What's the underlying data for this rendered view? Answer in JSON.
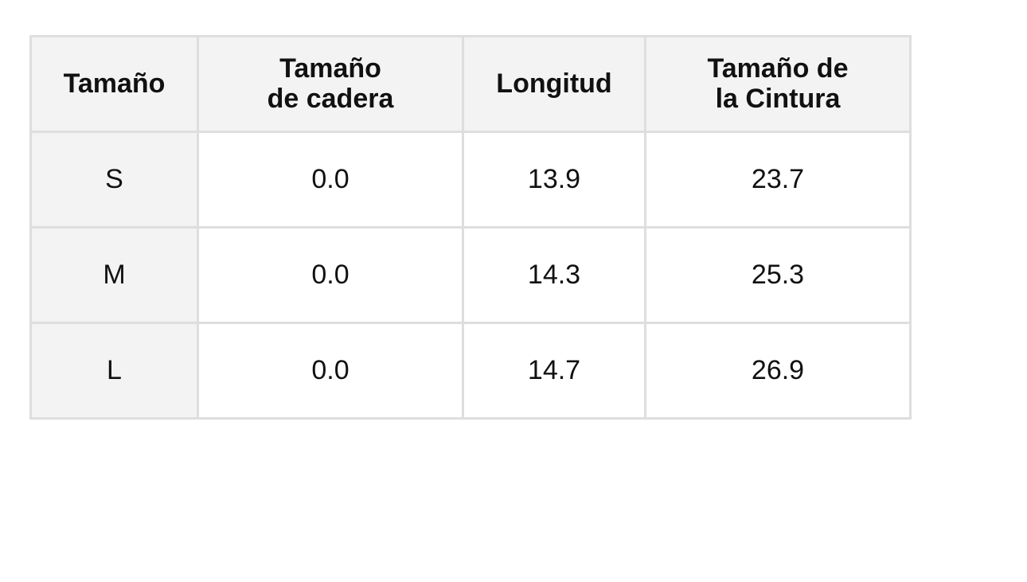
{
  "table": {
    "header": [
      "Tamaño",
      "Tamaño\nde cadera",
      "Longitud",
      "Tamaño de\nla Cintura"
    ],
    "rows": [
      [
        "S",
        "0.0",
        "13.9",
        "23.7"
      ],
      [
        "M",
        "0.0",
        "14.3",
        "25.3"
      ],
      [
        "L",
        "0.0",
        "14.7",
        "26.9"
      ]
    ]
  }
}
